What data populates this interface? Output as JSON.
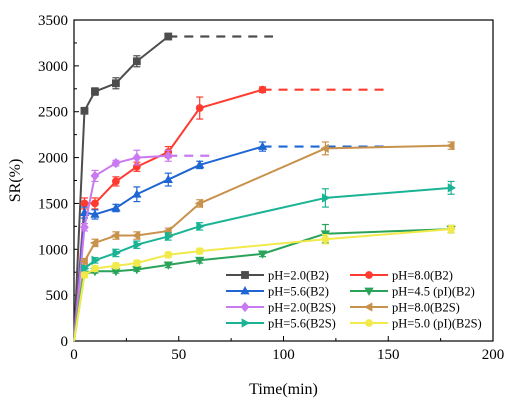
{
  "chart_data": {
    "type": "line",
    "title": "",
    "xlabel": "Time(min)",
    "ylabel": "SR(%)",
    "xlim": [
      0,
      200
    ],
    "ylim": [
      0,
      3500
    ],
    "x_ticks": [
      0,
      50,
      100,
      150,
      200
    ],
    "y_ticks": [
      0,
      500,
      1000,
      1500,
      2000,
      2500,
      3000,
      3500
    ],
    "grid": false,
    "legend_position": "bottom-right",
    "series": [
      {
        "name": "pH=2.0(B2)",
        "color": "#4d4d4d",
        "marker": "square",
        "x": [
          0,
          5,
          10,
          20,
          30,
          45
        ],
        "y": [
          0,
          2510,
          2720,
          2810,
          3050,
          3320
        ],
        "err": [
          0,
          30,
          40,
          60,
          60,
          30
        ],
        "extension": {
          "x": [
            45,
            95
          ],
          "y": 3320
        }
      },
      {
        "name": "pH=8.0(B2)",
        "color": "#ff3b30",
        "marker": "circle",
        "x": [
          0,
          5,
          10,
          20,
          30,
          45,
          60,
          90
        ],
        "y": [
          0,
          1500,
          1500,
          1740,
          1900,
          2060,
          2540,
          2740
        ],
        "err": [
          0,
          60,
          60,
          50,
          50,
          60,
          120,
          30
        ],
        "extension": {
          "x": [
            90,
            150
          ],
          "y": 2740
        }
      },
      {
        "name": "pH=5.6(B2)",
        "color": "#1f66d4",
        "marker": "triangle-up",
        "x": [
          0,
          5,
          10,
          20,
          30,
          45,
          60,
          90
        ],
        "y": [
          0,
          1400,
          1380,
          1450,
          1600,
          1760,
          1920,
          2120
        ],
        "err": [
          0,
          60,
          50,
          40,
          80,
          70,
          40,
          50
        ],
        "extension": {
          "x": [
            90,
            150
          ],
          "y": 2120
        }
      },
      {
        "name": "pH=4.5 (pI)(B2)",
        "color": "#2aa35a",
        "marker": "triangle-down",
        "x": [
          0,
          5,
          10,
          20,
          30,
          45,
          60,
          90,
          120,
          180
        ],
        "y": [
          0,
          730,
          760,
          760,
          780,
          830,
          880,
          950,
          1170,
          1220
        ],
        "err": [
          0,
          20,
          20,
          20,
          20,
          30,
          30,
          30,
          100,
          40
        ]
      },
      {
        "name": "pH=2.0(B2S)",
        "color": "#c97af0",
        "marker": "diamond",
        "x": [
          0,
          5,
          10,
          20,
          30,
          45
        ],
        "y": [
          0,
          1240,
          1800,
          1940,
          2000,
          2020
        ],
        "err": [
          0,
          40,
          60,
          30,
          80,
          60
        ],
        "extension": {
          "x": [
            45,
            68
          ],
          "y": 2020
        }
      },
      {
        "name": "pH=8.0(B2S)",
        "color": "#c8914c",
        "marker": "triangle-left",
        "x": [
          0,
          5,
          10,
          20,
          30,
          45,
          60,
          120,
          180
        ],
        "y": [
          0,
          870,
          1070,
          1150,
          1150,
          1200,
          1500,
          2100,
          2130
        ],
        "err": [
          0,
          30,
          40,
          40,
          40,
          30,
          40,
          70,
          40
        ]
      },
      {
        "name": "pH=5.6(B2S)",
        "color": "#1ab394",
        "marker": "triangle-right",
        "x": [
          0,
          5,
          10,
          20,
          30,
          45,
          60,
          120,
          180
        ],
        "y": [
          0,
          790,
          880,
          960,
          1050,
          1140,
          1250,
          1560,
          1670
        ],
        "err": [
          0,
          30,
          30,
          40,
          40,
          40,
          40,
          100,
          70
        ]
      },
      {
        "name": "pH=5.0 (pI)(B2S)",
        "color": "#f2ea4a",
        "marker": "circle",
        "x": [
          0,
          5,
          10,
          20,
          30,
          45,
          60,
          120,
          180
        ],
        "y": [
          0,
          720,
          790,
          820,
          850,
          940,
          980,
          1110,
          1220
        ],
        "err": [
          0,
          30,
          30,
          30,
          30,
          30,
          30,
          50,
          40
        ]
      }
    ]
  }
}
